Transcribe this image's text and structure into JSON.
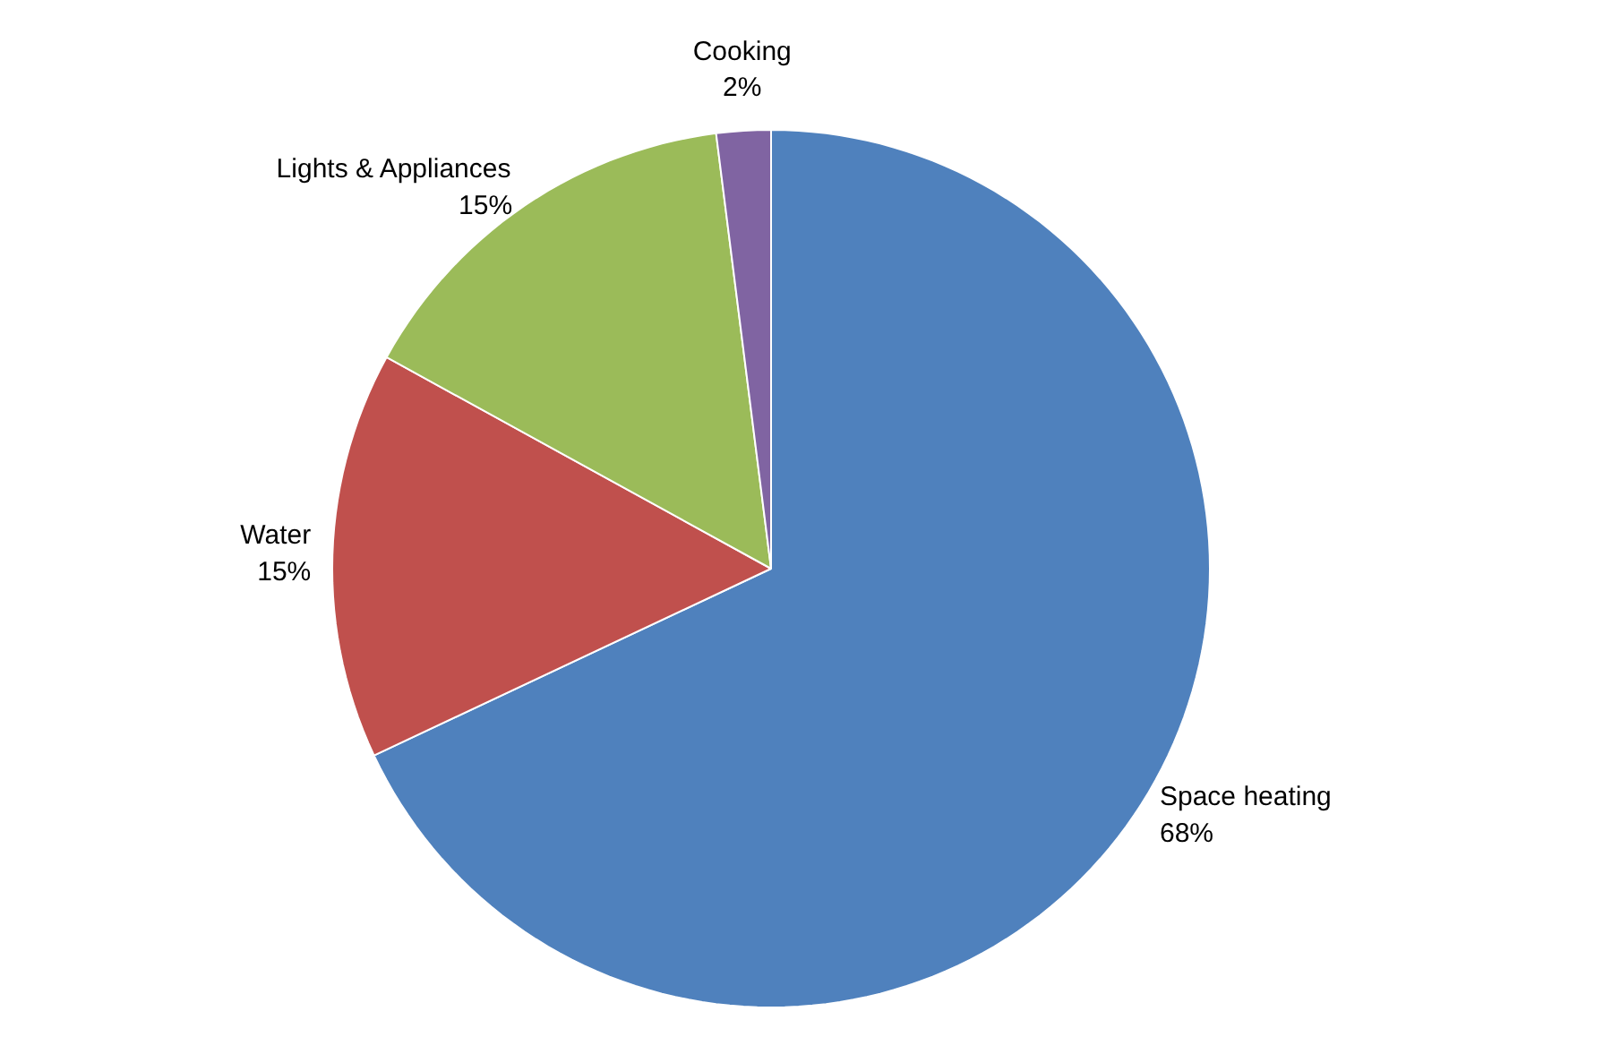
{
  "chart_data": {
    "type": "pie",
    "categories": [
      "Space heating",
      "Water",
      "Lights & Appliances",
      "Cooking"
    ],
    "values": [
      68,
      15,
      15,
      2
    ],
    "colors": [
      "#4f81bd",
      "#c0504d",
      "#9bbb59",
      "#8064a2"
    ],
    "value_labels": [
      "68%",
      "15%",
      "15%",
      "2%"
    ]
  }
}
